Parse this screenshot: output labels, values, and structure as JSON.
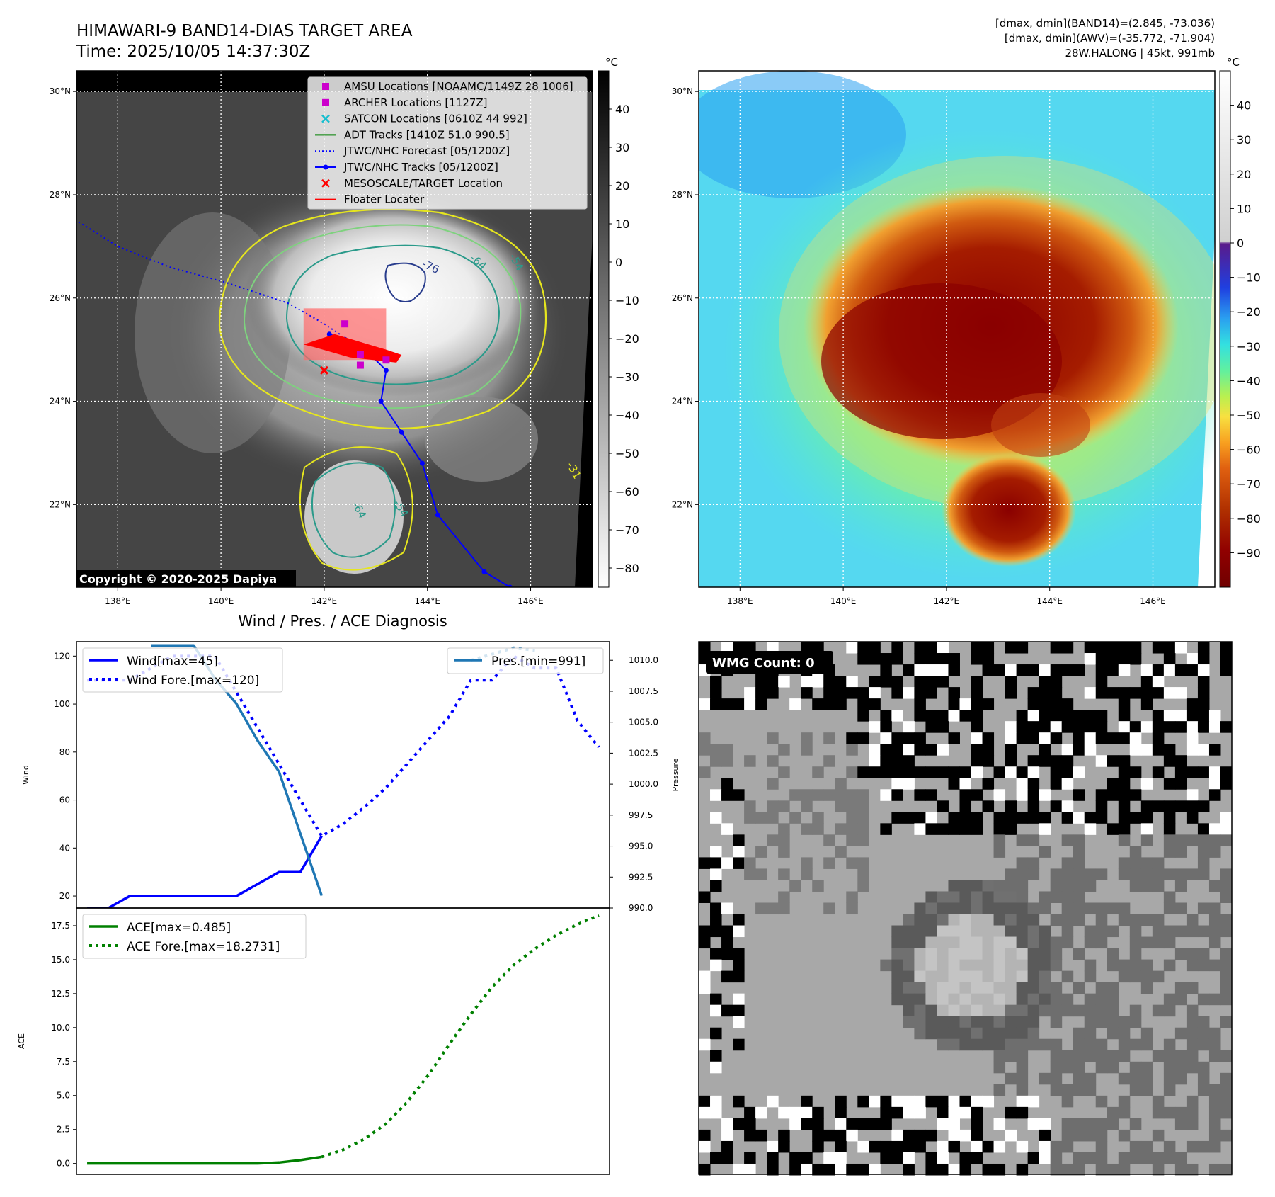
{
  "header": {
    "title_line1": "HIMAWARI-9 BAND14-DIAS TARGET AREA",
    "title_line2": "Time: 2025/10/05 14:37:30Z",
    "info_line1": "[dmax, dmin](BAND14)=(2.845, -73.036)",
    "info_line2": "[dmax, dmin](AWV)=(-35.772, -71.904)",
    "info_line3": "28W.HALONG | 45kt, 991mb"
  },
  "copyright": "Copyright © 2020-2025 Dapiya",
  "wmg_label": "WMG Count: 0",
  "colors": {
    "wind": "#0000ff",
    "pressure": "#1f77b4",
    "ace": "#008000",
    "track": "#0000ff",
    "floater": "#ff0000",
    "archer": "#cc00cc",
    "satcon": "#17becf"
  },
  "chart_data": [
    {
      "type": "heatmap",
      "panel": "band14-ir-map",
      "projection": "lat-lon",
      "xlim": [
        137.2,
        147.2
      ],
      "ylim": [
        20.4,
        30.4
      ],
      "x_ticks": [
        "138°E",
        "140°E",
        "142°E",
        "144°E",
        "146°E"
      ],
      "y_ticks": [
        "22°N",
        "24°N",
        "26°N",
        "28°N",
        "30°N"
      ],
      "x_tick_values": [
        138,
        140,
        142,
        144,
        146
      ],
      "y_tick_values": [
        22,
        24,
        26,
        28,
        30
      ],
      "colorbar": {
        "unit": "°C",
        "ticks": [
          "40",
          "30",
          "20",
          "10",
          "0",
          "−10",
          "−20",
          "−30",
          "−40",
          "−50",
          "−60",
          "−70",
          "−80"
        ],
        "tick_values": [
          40,
          30,
          20,
          10,
          0,
          -10,
          -20,
          -30,
          -40,
          -50,
          -60,
          -70,
          -80
        ],
        "range": [
          -85,
          50
        ]
      },
      "contour_labels": [
        "-76",
        "-64",
        "-54",
        "-31",
        "-64",
        "-54"
      ],
      "legend": {
        "placement": "top-right",
        "entries": [
          {
            "label": "AMSU Locations [NOAAMC/1149Z 28 1006]",
            "marker": "square",
            "color": "#cc00cc"
          },
          {
            "label": "ARCHER Locations [1127Z]",
            "marker": "square",
            "color": "#cc00cc"
          },
          {
            "label": "SATCON Locations [0610Z 44 992]",
            "marker": "x",
            "color": "#17becf"
          },
          {
            "label": "ADT Tracks [1410Z 51.0 990.5]",
            "marker": "line",
            "color": "#008000"
          },
          {
            "label": "JTWC/NHC Forecast [05/1200Z]",
            "marker": "dotted",
            "color": "#0000ff"
          },
          {
            "label": "JTWC/NHC Tracks [05/1200Z]",
            "marker": "line-dot",
            "color": "#0000ff"
          },
          {
            "label": "MESOSCALE/TARGET Location",
            "marker": "x",
            "color": "#ff0000"
          },
          {
            "label": "Floater Locater",
            "marker": "line",
            "color": "#ff0000"
          }
        ]
      },
      "best_track": [
        [
          145.6,
          20.4
        ],
        [
          145.1,
          20.7
        ],
        [
          144.2,
          21.8
        ],
        [
          143.9,
          22.8
        ],
        [
          143.5,
          23.4
        ],
        [
          143.1,
          24.0
        ],
        [
          143.2,
          24.6
        ],
        [
          142.9,
          24.9
        ],
        [
          142.7,
          25.1
        ],
        [
          142.4,
          25.2
        ],
        [
          142.1,
          25.3
        ]
      ],
      "forecast_track": [
        [
          142.3,
          25.3
        ],
        [
          142.0,
          25.5
        ],
        [
          141.3,
          25.9
        ],
        [
          140.1,
          26.3
        ],
        [
          139.0,
          26.6
        ],
        [
          138.0,
          27.0
        ],
        [
          137.2,
          27.5
        ]
      ],
      "target_location": [
        142.0,
        24.6
      ],
      "archer_points": [
        [
          142.4,
          25.5
        ],
        [
          142.7,
          24.9
        ],
        [
          142.7,
          24.7
        ],
        [
          143.2,
          24.8
        ]
      ]
    },
    {
      "type": "heatmap",
      "panel": "awv-enhanced-map",
      "projection": "lat-lon",
      "xlim": [
        137.2,
        147.2
      ],
      "ylim": [
        20.4,
        30.4
      ],
      "x_ticks": [
        "138°E",
        "140°E",
        "142°E",
        "144°E",
        "146°E"
      ],
      "y_ticks": [
        "22°N",
        "24°N",
        "26°N",
        "28°N",
        "30°N"
      ],
      "x_tick_values": [
        138,
        140,
        142,
        144,
        146
      ],
      "y_tick_values": [
        22,
        24,
        26,
        28,
        30
      ],
      "colorbar": {
        "unit": "°C",
        "ticks": [
          "40",
          "30",
          "20",
          "10",
          "0",
          "−10",
          "−20",
          "−30",
          "−40",
          "−50",
          "−60",
          "−70",
          "−80",
          "−90"
        ],
        "tick_values": [
          40,
          30,
          20,
          10,
          0,
          -10,
          -20,
          -30,
          -40,
          -50,
          -60,
          -70,
          -80,
          -90
        ],
        "range": [
          -100,
          50
        ]
      }
    },
    {
      "type": "line",
      "panel": "wind-pressure",
      "title": "Wind / Pres. / ACE Diagnosis",
      "ylabel": "Wind",
      "y2label": "Pressure",
      "ylim": [
        15,
        126
      ],
      "y2lim": [
        990,
        1011.5
      ],
      "xlim": [
        -0.5,
        24.5
      ],
      "yticks": [
        20,
        40,
        60,
        80,
        100,
        120
      ],
      "y2ticks": [
        "1010.0",
        "1007.5",
        "1005.0",
        "1002.5",
        "1000.0",
        "997.5",
        "995.0",
        "992.5",
        "990.0"
      ],
      "y2tick_values": [
        1010,
        1007.5,
        1005,
        1002.5,
        1000,
        997.5,
        995,
        992.5,
        990
      ],
      "series": [
        {
          "name": "Wind[max=45]",
          "style": "solid",
          "color": "#0000ff",
          "axis": "left",
          "x": [
            0,
            1,
            2,
            3,
            4,
            5,
            6,
            7,
            8,
            9,
            10,
            11
          ],
          "values": [
            15,
            15,
            20,
            20,
            20,
            20,
            20,
            20,
            25,
            30,
            30,
            45
          ]
        },
        {
          "name": "Wind Fore.[max=120]",
          "style": "dotted",
          "color": "#0000ff",
          "axis": "left",
          "x": [
            0,
            1,
            2,
            3,
            4,
            5,
            6,
            11,
            12,
            13,
            14,
            15,
            16,
            17,
            18,
            19,
            20,
            21,
            22,
            23,
            24
          ],
          "values": [
            110,
            110,
            110,
            115,
            120,
            120,
            120,
            45,
            50,
            57,
            65,
            75,
            85,
            95,
            110,
            110,
            120,
            115,
            115,
            93,
            82
          ]
        },
        {
          "name": "Pres.[min=991]",
          "style": "solid",
          "color": "#1f77b4",
          "axis": "right",
          "x": [
            3,
            4,
            5,
            6,
            7,
            8,
            9,
            10,
            11
          ],
          "values": [
            1011.2,
            1011.2,
            1011.2,
            1008.5,
            1006.5,
            1003.5,
            1001.0,
            996.0,
            991.0
          ]
        },
        {
          "name": "",
          "style": "dotted",
          "color": "#1f77b4",
          "axis": "right",
          "x": [
            18,
            19,
            20,
            21
          ],
          "values": [
            1010.0,
            1010.5,
            1011.0,
            1010.8
          ]
        }
      ]
    },
    {
      "type": "line",
      "panel": "ace",
      "ylabel": "ACE",
      "ylim": [
        -0.8,
        18.8
      ],
      "xlim": [
        -0.5,
        24.5
      ],
      "yticks": [
        "0.0",
        "2.5",
        "5.0",
        "7.5",
        "10.0",
        "12.5",
        "15.0",
        "17.5"
      ],
      "ytick_values": [
        0,
        2.5,
        5,
        7.5,
        10,
        12.5,
        15,
        17.5
      ],
      "series": [
        {
          "name": "ACE[max=0.485]",
          "style": "solid",
          "color": "#008000",
          "x": [
            0,
            2,
            4,
            6,
            8,
            9,
            10,
            11
          ],
          "values": [
            0,
            0,
            0,
            0,
            0,
            0.07,
            0.25,
            0.485
          ]
        },
        {
          "name": "ACE Fore.[max=18.2731]",
          "style": "dotted",
          "color": "#008000",
          "x": [
            11,
            12,
            13,
            14,
            15,
            16,
            17,
            18,
            19,
            20,
            21,
            22,
            23,
            24
          ],
          "values": [
            0.485,
            1.0,
            1.8,
            2.9,
            4.5,
            6.5,
            8.8,
            11.0,
            13.0,
            14.6,
            15.8,
            16.8,
            17.6,
            18.2731
          ]
        }
      ]
    }
  ]
}
